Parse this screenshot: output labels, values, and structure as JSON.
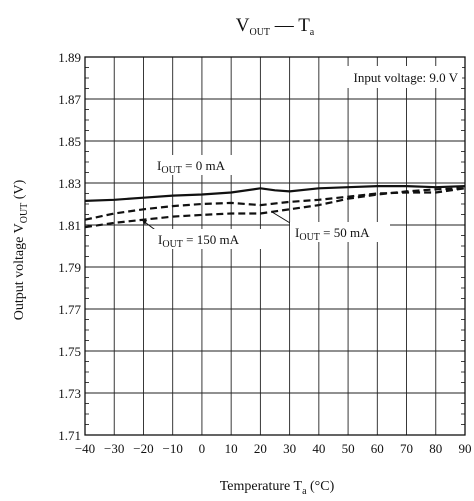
{
  "chart_data": {
    "type": "line",
    "title": {
      "main": "V",
      "main_sub": "OUT",
      "sep": " — T",
      "sep_sub": "a"
    },
    "xlabel": {
      "prefix": "Temperature  T",
      "sub": "a",
      "suffix": "  (°C)"
    },
    "ylabel": {
      "prefix": "Output voltage  V",
      "sub": "OUT",
      "suffix": "  (V)"
    },
    "xlim": [
      -40,
      90
    ],
    "ylim": [
      1.71,
      1.89
    ],
    "x_ticks": [
      "−40",
      "−30",
      "−20",
      "−10",
      "0",
      "10",
      "20",
      "30",
      "40",
      "50",
      "60",
      "70",
      "80",
      "90"
    ],
    "x_tick_values": [
      -40,
      -30,
      -20,
      -10,
      0,
      10,
      20,
      30,
      40,
      50,
      60,
      70,
      80,
      90
    ],
    "y_ticks": [
      "1.71",
      "1.73",
      "1.75",
      "1.77",
      "1.79",
      "1.81",
      "1.83",
      "1.85",
      "1.87",
      "1.89"
    ],
    "y_tick_values": [
      1.71,
      1.73,
      1.75,
      1.77,
      1.79,
      1.81,
      1.83,
      1.85,
      1.87,
      1.89
    ],
    "grid": true,
    "note": "Input voltage: 9.0 V",
    "series": [
      {
        "name": "I_OUT = 0 mA",
        "label_prefix": "I",
        "label_sub": "OUT",
        "label_suffix": " = 0 mA",
        "style": "solid",
        "x": [
          -40,
          -30,
          -20,
          -10,
          0,
          10,
          20,
          25,
          30,
          40,
          50,
          60,
          70,
          80,
          90
        ],
        "y": [
          1.8215,
          1.822,
          1.823,
          1.824,
          1.8245,
          1.8255,
          1.8275,
          1.8265,
          1.826,
          1.8275,
          1.828,
          1.8285,
          1.8285,
          1.828,
          1.8285
        ]
      },
      {
        "name": "I_OUT = 50 mA",
        "label_prefix": "I",
        "label_sub": "OUT",
        "label_suffix": " = 50 mA",
        "style": "dashed",
        "x": [
          -40,
          -30,
          -20,
          -10,
          0,
          10,
          20,
          30,
          40,
          50,
          60,
          70,
          80,
          90
        ],
        "y": [
          1.8125,
          1.8155,
          1.8175,
          1.819,
          1.82,
          1.8205,
          1.8195,
          1.821,
          1.822,
          1.8235,
          1.825,
          1.8255,
          1.8255,
          1.8275
        ]
      },
      {
        "name": "I_OUT = 150 mA",
        "label_prefix": "I",
        "label_sub": "OUT",
        "label_suffix": " = 150 mA",
        "style": "dashed",
        "x": [
          -40,
          -30,
          -20,
          -10,
          0,
          10,
          20,
          30,
          40,
          50,
          60,
          70,
          80,
          90
        ],
        "y": [
          1.809,
          1.811,
          1.8125,
          1.814,
          1.8148,
          1.8155,
          1.8155,
          1.8175,
          1.8195,
          1.8225,
          1.8245,
          1.826,
          1.827,
          1.8275
        ]
      }
    ]
  }
}
